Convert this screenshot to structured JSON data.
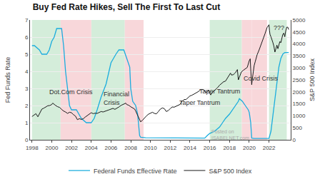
{
  "chart_data": {
    "type": "line",
    "title": "Buy Fed Rate Hikes, Sell The First To Last Cut",
    "ylabel": "Fed Funds Rate",
    "y2label": "S&P 500 Index",
    "xlim": [
      1997.8,
      2024.2
    ],
    "xticks": [
      1998,
      2000,
      2002,
      2004,
      2006,
      2008,
      2010,
      2012,
      2014,
      2016,
      2018,
      2020,
      2022
    ],
    "ylim": [
      0,
      7
    ],
    "yticks": [
      0,
      1,
      2,
      3,
      4,
      5,
      6,
      7
    ],
    "y2lim": [
      0,
      5000
    ],
    "y2ticks": [
      0,
      500,
      1000,
      1500,
      2000,
      2500,
      3000,
      3500,
      4000,
      4500,
      5000
    ],
    "grid": true,
    "legend": "bottom",
    "bands": [
      {
        "from": 1998.0,
        "to": 2000.9,
        "color": "#d4edda"
      },
      {
        "from": 2004.0,
        "to": 2007.4,
        "color": "#d4edda"
      },
      {
        "from": 2016.0,
        "to": 2019.25,
        "color": "#d4edda"
      },
      {
        "from": 2022.0,
        "to": 2023.8,
        "color": "#d4edda"
      },
      {
        "from": 2000.9,
        "to": 2004.0,
        "color": "#f8d7da"
      },
      {
        "from": 2007.4,
        "to": 2009.3,
        "color": "#f8d7da"
      },
      {
        "from": 2019.25,
        "to": 2020.25,
        "color": "#f8d7da"
      },
      {
        "from": 2020.25,
        "to": 2021.8,
        "color": "#f8d7da"
      }
    ],
    "annotations": [
      {
        "text": "Dot.Com Crisis",
        "x": 1999.6,
        "y": 2.8
      },
      {
        "text": "Financial\nCrisis",
        "x": 2005.1,
        "y": 2.4
      },
      {
        "text": "Taper Tantrum",
        "x": 2012.8,
        "y": 2.15
      },
      {
        "text": "Taper Tantrum",
        "x": 2014.8,
        "y": 2.85
      },
      {
        "text": "Covid Crisis",
        "x": 2019.3,
        "y": 3.6
      },
      {
        "text": "???",
        "x": 2022.35,
        "y": 6.55
      }
    ],
    "watermark": {
      "text": "Posted on\nISABELNET.com",
      "x": 2016.0,
      "y": 0.3
    },
    "series": [
      {
        "name": "Federal Funds Effective Rate",
        "color": "#1aadde",
        "x": [
          1998.0,
          1998.25,
          1998.75,
          1999.0,
          1999.5,
          1999.75,
          2000.0,
          2000.25,
          2000.5,
          2000.75,
          2001.0,
          2001.1,
          2001.2,
          2001.4,
          2001.6,
          2001.8,
          2002.0,
          2002.5,
          2003.0,
          2003.5,
          2004.0,
          2004.3,
          2004.6,
          2005.0,
          2005.5,
          2006.0,
          2006.5,
          2006.8,
          2007.0,
          2007.3,
          2007.6,
          2007.9,
          2008.0,
          2008.2,
          2008.5,
          2008.7,
          2008.9,
          2009.0,
          2009.5,
          2010.0,
          2011.0,
          2012.0,
          2013.0,
          2014.0,
          2015.0,
          2015.5,
          2015.75,
          2016.0,
          2016.5,
          2017.0,
          2017.3,
          2017.6,
          2018.0,
          2018.3,
          2018.6,
          2018.9,
          2019.0,
          2019.3,
          2019.6,
          2019.9,
          2020.0,
          2020.15,
          2020.25,
          2020.5,
          2021.0,
          2021.5,
          2022.0,
          2022.2,
          2022.4,
          2022.6,
          2022.8,
          2023.0,
          2023.2,
          2023.4,
          2023.6,
          2023.8,
          2024.0
        ],
        "values": [
          5.5,
          5.5,
          5.25,
          5.0,
          5.0,
          5.25,
          5.75,
          6.0,
          6.5,
          6.5,
          6.5,
          6.0,
          5.5,
          4.0,
          3.0,
          2.0,
          1.75,
          1.75,
          1.25,
          1.0,
          1.0,
          1.25,
          1.75,
          2.5,
          3.25,
          4.5,
          5.0,
          5.25,
          5.25,
          5.25,
          4.75,
          4.25,
          3.0,
          2.25,
          2.0,
          1.5,
          0.25,
          0.15,
          0.12,
          0.12,
          0.1,
          0.1,
          0.1,
          0.1,
          0.1,
          0.1,
          0.25,
          0.37,
          0.5,
          0.75,
          1.0,
          1.25,
          1.5,
          1.75,
          2.0,
          2.25,
          2.4,
          2.25,
          2.0,
          1.75,
          1.6,
          1.0,
          0.1,
          0.08,
          0.08,
          0.08,
          0.08,
          0.5,
          1.5,
          2.5,
          3.5,
          4.25,
          4.75,
          5.0,
          5.1,
          5.1,
          5.1
        ]
      },
      {
        "name": "S&P 500 Index",
        "color": "#1a1a1a",
        "axis": "y2",
        "x": [
          1998.0,
          1998.2,
          1998.4,
          1998.6,
          1998.8,
          1999.0,
          1999.2,
          1999.4,
          1999.6,
          1999.8,
          2000.0,
          2000.1,
          2000.2,
          2000.4,
          2000.6,
          2000.8,
          2001.0,
          2001.2,
          2001.4,
          2001.6,
          2001.8,
          2002.0,
          2002.2,
          2002.4,
          2002.6,
          2002.8,
          2003.0,
          2003.2,
          2003.4,
          2003.6,
          2003.8,
          2004.0,
          2004.2,
          2004.4,
          2004.6,
          2004.8,
          2005.0,
          2005.2,
          2005.4,
          2005.6,
          2005.8,
          2006.0,
          2006.2,
          2006.4,
          2006.6,
          2006.8,
          2007.0,
          2007.2,
          2007.4,
          2007.5,
          2007.6,
          2007.8,
          2008.0,
          2008.2,
          2008.4,
          2008.5,
          2008.6,
          2008.8,
          2009.0,
          2009.2,
          2009.4,
          2009.6,
          2009.8,
          2010.0,
          2010.2,
          2010.4,
          2010.6,
          2010.8,
          2011.0,
          2011.2,
          2011.4,
          2011.6,
          2011.8,
          2012.0,
          2012.2,
          2012.4,
          2012.6,
          2012.8,
          2013.0,
          2013.1,
          2013.2,
          2013.3,
          2013.4,
          2013.6,
          2013.8,
          2014.0,
          2014.2,
          2014.4,
          2014.6,
          2014.8,
          2015.0,
          2015.1,
          2015.2,
          2015.3,
          2015.4,
          2015.5,
          2015.6,
          2015.8,
          2015.9,
          2016.0,
          2016.1,
          2016.2,
          2016.4,
          2016.6,
          2016.8,
          2017.0,
          2017.2,
          2017.4,
          2017.6,
          2017.8,
          2018.0,
          2018.1,
          2018.2,
          2018.4,
          2018.6,
          2018.8,
          2018.9,
          2019.0,
          2019.1,
          2019.2,
          2019.4,
          2019.6,
          2019.8,
          2020.0,
          2020.1,
          2020.15,
          2020.2,
          2020.25,
          2020.3,
          2020.4,
          2020.5,
          2020.6,
          2020.8,
          2021.0,
          2021.2,
          2021.4,
          2021.6,
          2021.8,
          2022.0,
          2022.05,
          2022.1,
          2022.2,
          2022.3,
          2022.4,
          2022.5,
          2022.6,
          2022.7,
          2022.8,
          2022.9,
          2023.0,
          2023.1,
          2023.2,
          2023.3,
          2023.4,
          2023.5,
          2023.6,
          2023.7,
          2023.8,
          2023.9,
          2024.0
        ],
        "values": [
          970,
          1020,
          1090,
          960,
          1100,
          1280,
          1320,
          1360,
          1420,
          1430,
          1470,
          1530,
          1490,
          1430,
          1380,
          1350,
          1270,
          1200,
          1160,
          1100,
          1150,
          1130,
          1050,
          990,
          840,
          880,
          850,
          880,
          950,
          1010,
          1060,
          1130,
          1090,
          1110,
          1100,
          1140,
          1180,
          1160,
          1200,
          1220,
          1250,
          1270,
          1310,
          1270,
          1310,
          1370,
          1430,
          1480,
          1510,
          1530,
          1470,
          1440,
          1380,
          1330,
          1280,
          1200,
          1100,
          900,
          750,
          820,
          920,
          1000,
          1070,
          1115,
          1150,
          1100,
          1080,
          1180,
          1280,
          1330,
          1300,
          1180,
          1220,
          1300,
          1370,
          1360,
          1400,
          1430,
          1480,
          1550,
          1630,
          1610,
          1680,
          1680,
          1750,
          1830,
          1860,
          1900,
          1960,
          2000,
          2060,
          2100,
          2090,
          2100,
          2080,
          2040,
          1980,
          2020,
          2080,
          1940,
          1870,
          1950,
          2020,
          2100,
          2180,
          2280,
          2350,
          2420,
          2450,
          2580,
          2680,
          2780,
          2700,
          2720,
          2800,
          2930,
          2500,
          2600,
          2750,
          2830,
          2900,
          2950,
          3020,
          3300,
          3380,
          2950,
          2500,
          2300,
          2500,
          2850,
          3100,
          3250,
          3550,
          3750,
          4000,
          4200,
          4430,
          4680,
          4800,
          4560,
          4400,
          4300,
          4200,
          4050,
          3900,
          3660,
          3800,
          3950,
          3800,
          4000,
          4100,
          4050,
          4200,
          4400,
          4450,
          4300,
          4550,
          4700,
          4700,
          4600
        ]
      }
    ]
  }
}
